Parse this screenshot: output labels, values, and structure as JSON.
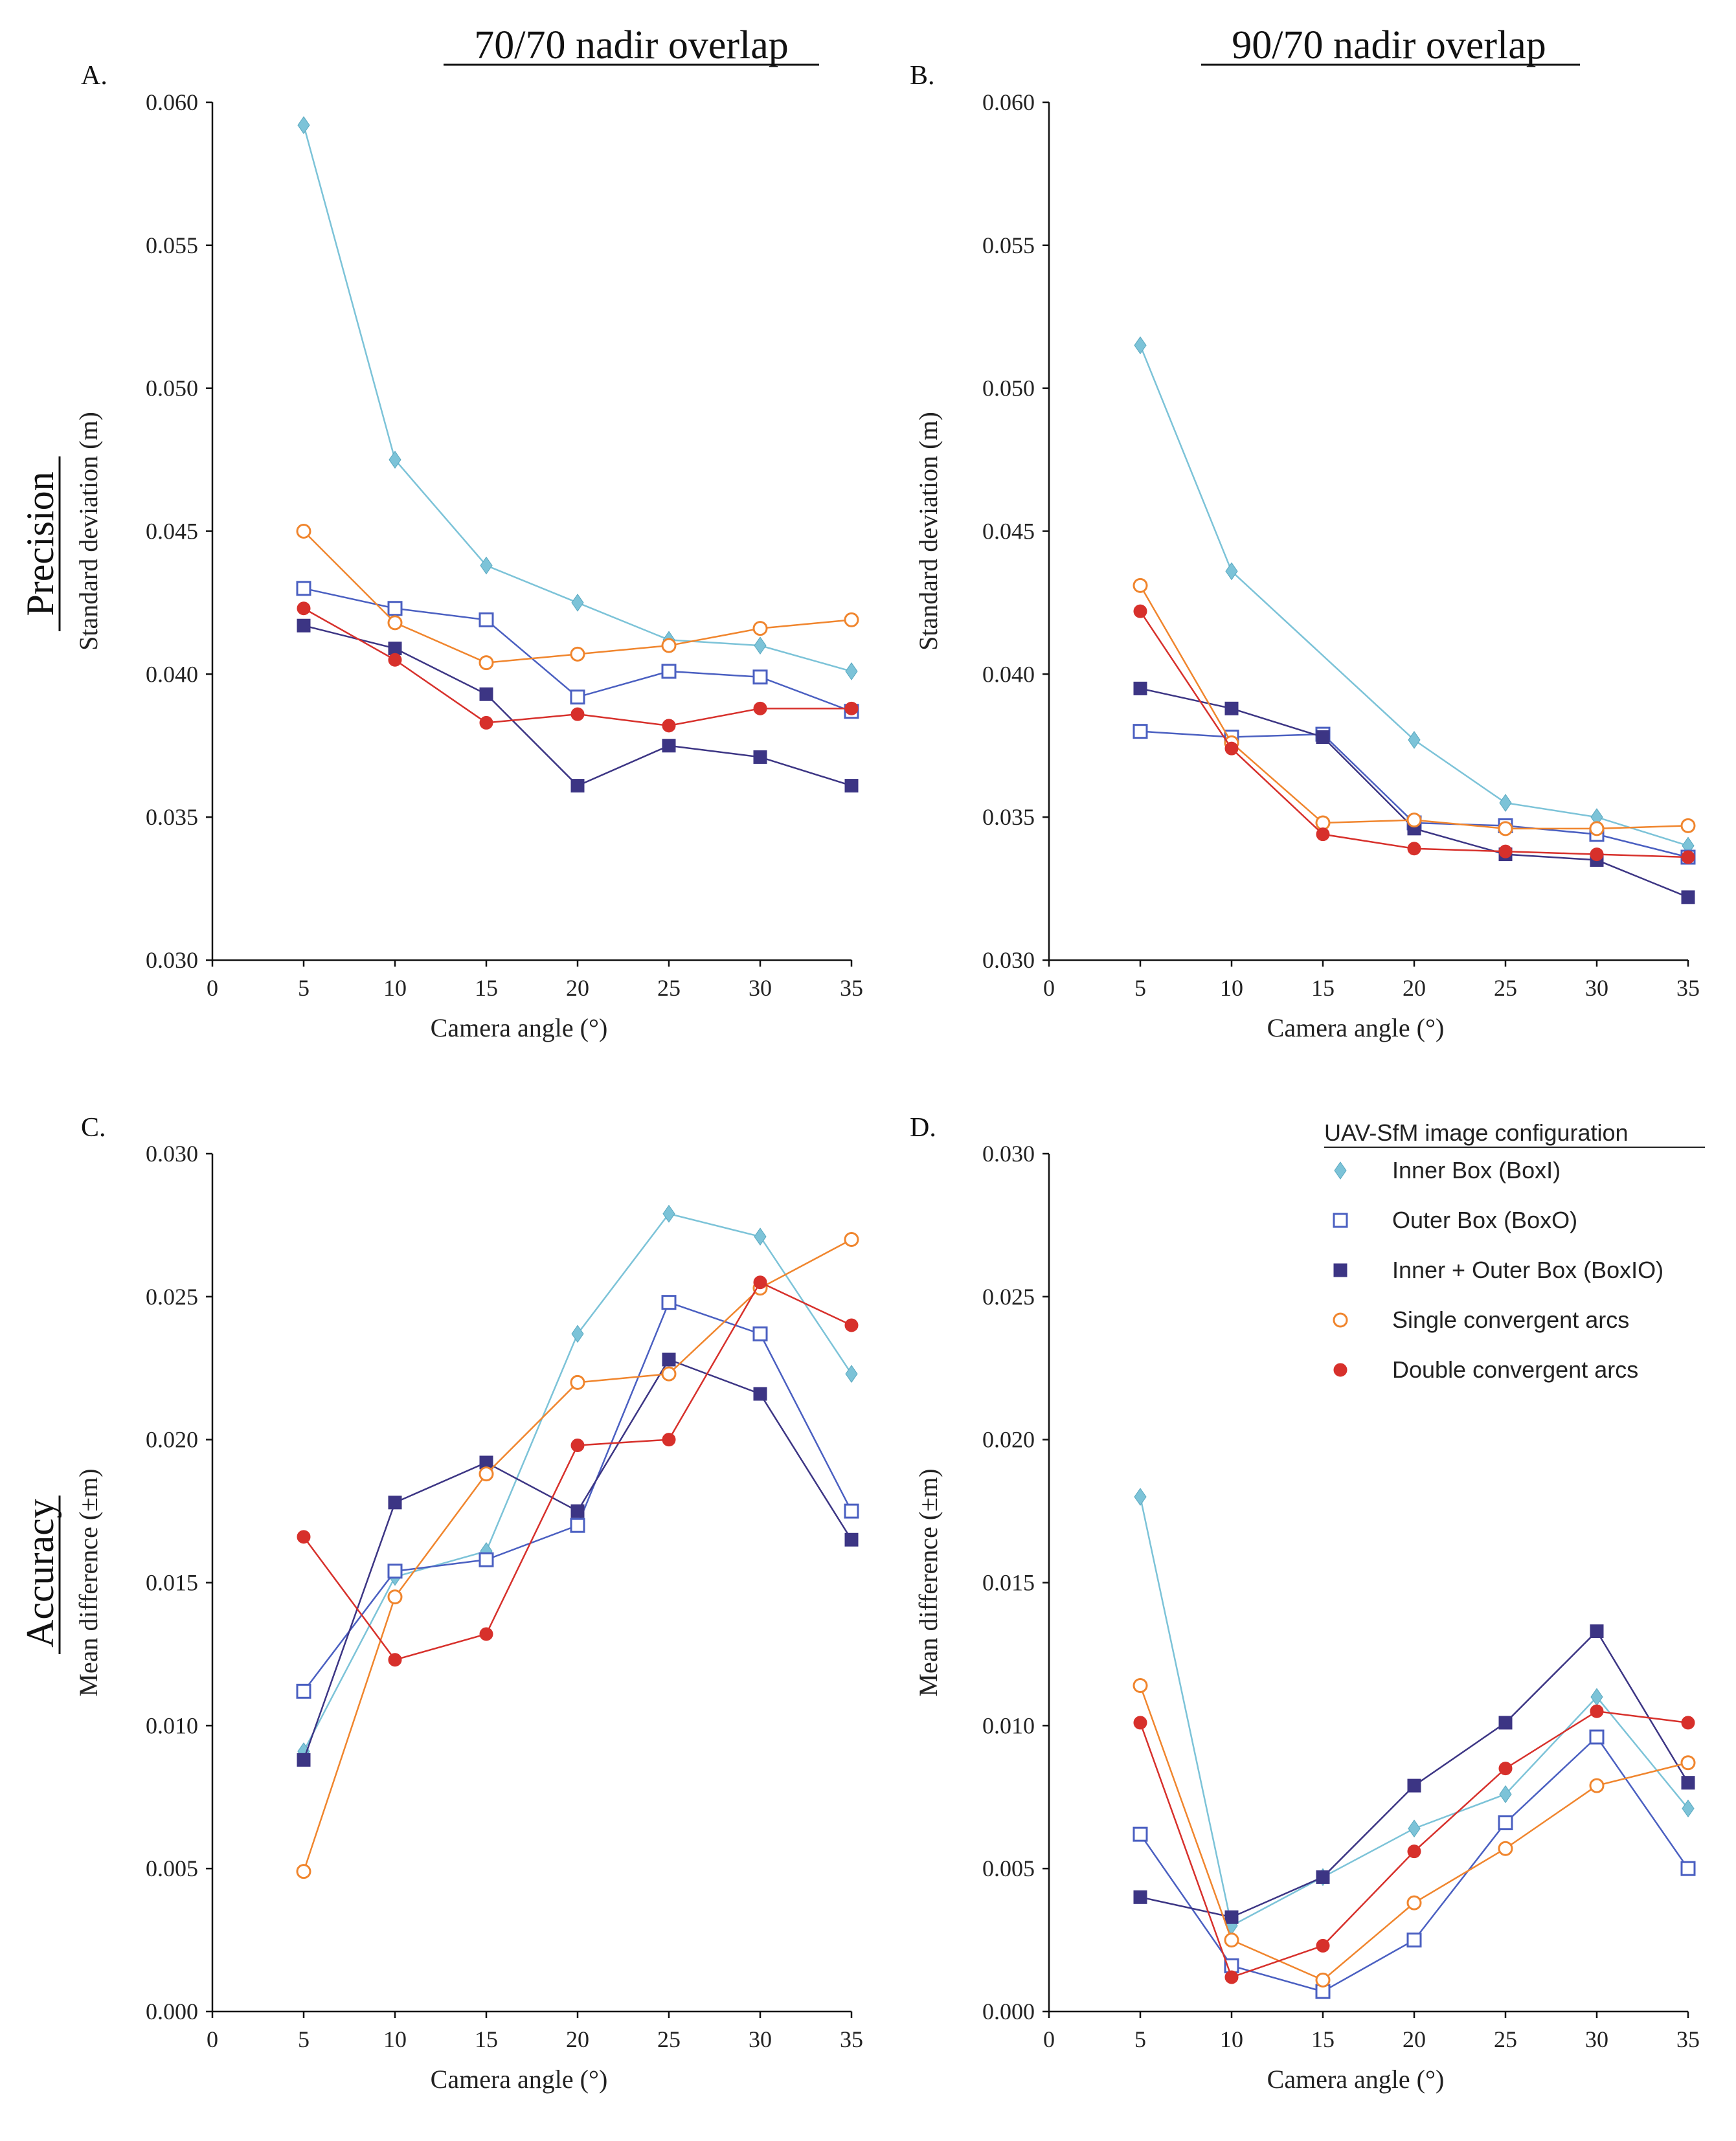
{
  "figure": {
    "column_titles": [
      "70/70 nadir overlap",
      "90/70 nadir overlap"
    ],
    "row_titles": [
      "Precision",
      "Accuracy"
    ]
  },
  "legend": {
    "title": "UAV-SfM image configuration",
    "items": [
      {
        "label": "Inner Box (BoxI)",
        "marker": "diamond",
        "color": "#7cc3d8"
      },
      {
        "label": "Outer Box (BoxO)",
        "marker": "square-open",
        "color": "#4a5fc1"
      },
      {
        "label": "Inner + Outer Box (BoxIO)",
        "marker": "square-filled",
        "color": "#3c3584"
      },
      {
        "label": "Single convergent arcs",
        "marker": "circle-open",
        "color": "#f0852d"
      },
      {
        "label": "Double convergent arcs",
        "marker": "circle-filled",
        "color": "#d7302b"
      }
    ]
  },
  "chart_data": [
    {
      "type": "line",
      "panel": "A.",
      "title": "70/70 nadir overlap",
      "xlabel": "Camera angle (°)",
      "ylabel": "Standard deviation (m)",
      "xlim": [
        0,
        35
      ],
      "ylim": [
        0.03,
        0.06
      ],
      "xticks": [
        "0",
        "5",
        "10",
        "15",
        "20",
        "25",
        "30",
        "35"
      ],
      "yticks": [
        "0.030",
        "0.035",
        "0.040",
        "0.045",
        "0.050",
        "0.055",
        "0.060"
      ],
      "x": [
        5,
        10,
        15,
        20,
        25,
        30,
        35
      ],
      "series": [
        {
          "name": "Inner Box (BoxI)",
          "values": [
            0.0592,
            0.0475,
            0.0438,
            0.0425,
            0.0412,
            0.041,
            0.0401
          ]
        },
        {
          "name": "Outer Box (BoxO)",
          "values": [
            0.043,
            0.0423,
            0.0419,
            0.0392,
            0.0401,
            0.0399,
            0.0387
          ]
        },
        {
          "name": "Inner + Outer Box (BoxIO)",
          "values": [
            0.0417,
            0.0409,
            0.0393,
            0.0361,
            0.0375,
            0.0371,
            0.0361
          ]
        },
        {
          "name": "Single convergent arcs",
          "values": [
            0.045,
            0.0418,
            0.0404,
            0.0407,
            0.041,
            0.0416,
            0.0419
          ]
        },
        {
          "name": "Double convergent arcs",
          "values": [
            0.0423,
            0.0405,
            0.0383,
            0.0386,
            0.0382,
            0.0388,
            0.0388
          ]
        }
      ]
    },
    {
      "type": "line",
      "panel": "B.",
      "title": "90/70 nadir overlap",
      "xlabel": "Camera angle (°)",
      "ylabel": "Standard deviation (m)",
      "xlim": [
        0,
        35
      ],
      "ylim": [
        0.03,
        0.06
      ],
      "xticks": [
        "0",
        "5",
        "10",
        "15",
        "20",
        "25",
        "30",
        "35"
      ],
      "yticks": [
        "0.030",
        "0.035",
        "0.040",
        "0.045",
        "0.050",
        "0.055",
        "0.060"
      ],
      "x": [
        5,
        10,
        15,
        20,
        25,
        30,
        35
      ],
      "series": [
        {
          "name": "Inner Box (BoxI)",
          "values": [
            0.0515,
            0.0436,
            null,
            0.0377,
            0.0355,
            0.035,
            0.034
          ]
        },
        {
          "name": "Outer Box (BoxO)",
          "values": [
            0.038,
            0.0378,
            0.0379,
            0.0348,
            0.0347,
            0.0344,
            0.0336
          ]
        },
        {
          "name": "Inner + Outer Box (BoxIO)",
          "values": [
            0.0395,
            0.0388,
            0.0378,
            0.0346,
            0.0337,
            0.0335,
            0.0322
          ]
        },
        {
          "name": "Single convergent arcs",
          "values": [
            0.0431,
            0.0376,
            0.0348,
            0.0349,
            0.0346,
            0.0346,
            0.0347
          ]
        },
        {
          "name": "Double convergent arcs",
          "values": [
            0.0422,
            0.0374,
            0.0344,
            0.0339,
            0.0338,
            0.0337,
            0.0336
          ]
        }
      ]
    },
    {
      "type": "line",
      "panel": "C.",
      "xlabel": "Camera angle (°)",
      "ylabel": "Mean difference (±m)",
      "xlim": [
        0,
        35
      ],
      "ylim": [
        0.0,
        0.03
      ],
      "xticks": [
        "0",
        "5",
        "10",
        "15",
        "20",
        "25",
        "30",
        "35"
      ],
      "yticks": [
        "0.000",
        "0.005",
        "0.010",
        "0.015",
        "0.020",
        "0.025",
        "0.030"
      ],
      "x": [
        5,
        10,
        15,
        20,
        25,
        30,
        35
      ],
      "series": [
        {
          "name": "Inner Box (BoxI)",
          "values": [
            0.0091,
            0.0152,
            0.0161,
            0.0237,
            0.0279,
            0.0271,
            0.0223
          ]
        },
        {
          "name": "Outer Box (BoxO)",
          "values": [
            0.0112,
            0.0154,
            0.0158,
            0.017,
            0.0248,
            0.0237,
            0.0175
          ]
        },
        {
          "name": "Inner + Outer Box (BoxIO)",
          "values": [
            0.0088,
            0.0178,
            0.0192,
            0.0175,
            0.0228,
            0.0216,
            0.0165
          ]
        },
        {
          "name": "Single convergent arcs",
          "values": [
            0.0049,
            0.0145,
            0.0188,
            0.022,
            0.0223,
            0.0253,
            0.027
          ]
        },
        {
          "name": "Double convergent arcs",
          "values": [
            0.0166,
            0.0123,
            0.0132,
            0.0198,
            0.02,
            0.0255,
            0.024
          ]
        }
      ]
    },
    {
      "type": "line",
      "panel": "D.",
      "xlabel": "Camera angle (°)",
      "ylabel": "Mean difference (±m)",
      "xlim": [
        0,
        35
      ],
      "ylim": [
        0.0,
        0.03
      ],
      "xticks": [
        "0",
        "5",
        "10",
        "15",
        "20",
        "25",
        "30",
        "35"
      ],
      "yticks": [
        "0.000",
        "0.005",
        "0.010",
        "0.015",
        "0.020",
        "0.025",
        "0.030"
      ],
      "x": [
        5,
        10,
        15,
        20,
        25,
        30,
        35
      ],
      "series": [
        {
          "name": "Inner Box (BoxI)",
          "values": [
            0.018,
            0.003,
            0.0047,
            0.0064,
            0.0076,
            0.011,
            0.0071
          ]
        },
        {
          "name": "Outer Box (BoxO)",
          "values": [
            0.0062,
            0.0016,
            0.0007,
            0.0025,
            0.0066,
            0.0096,
            0.005
          ]
        },
        {
          "name": "Inner + Outer Box (BoxIO)",
          "values": [
            0.004,
            0.0033,
            0.0047,
            0.0079,
            0.0101,
            0.0133,
            0.008
          ]
        },
        {
          "name": "Single convergent arcs",
          "values": [
            0.0114,
            0.0025,
            0.0011,
            0.0038,
            0.0057,
            0.0079,
            0.0087
          ]
        },
        {
          "name": "Double convergent arcs",
          "values": [
            0.0101,
            0.0012,
            0.0023,
            0.0056,
            0.0085,
            0.0105,
            0.0101
          ]
        }
      ]
    }
  ]
}
